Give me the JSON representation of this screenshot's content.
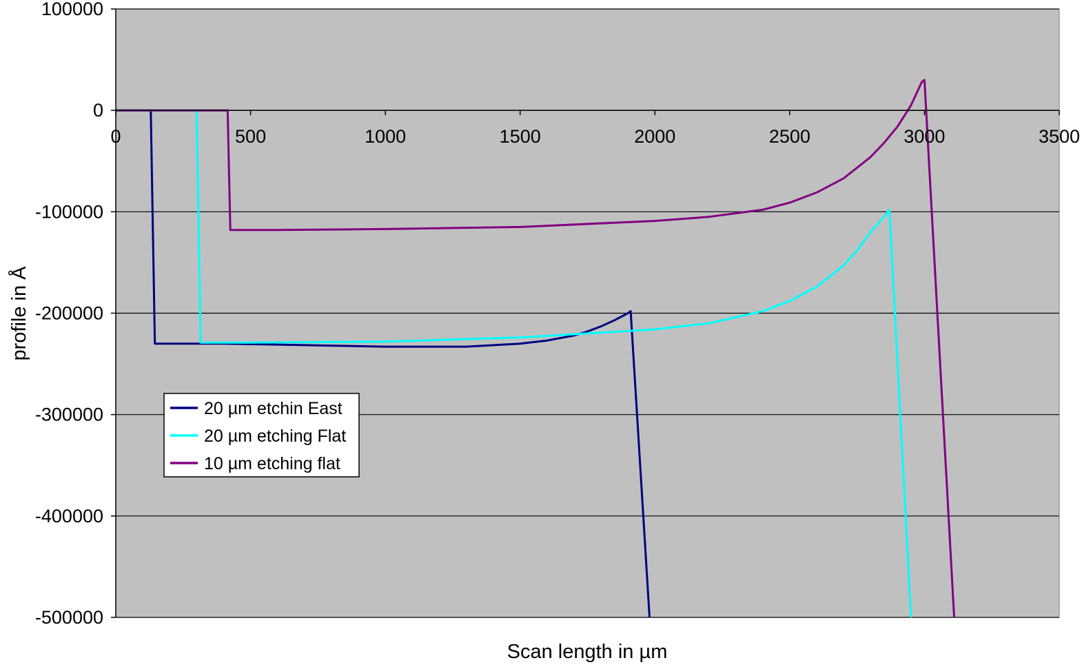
{
  "chart_data": {
    "type": "line",
    "title": "",
    "xlabel": "Scan length in µm",
    "ylabel": "profile in Å",
    "xlim": [
      0,
      3500
    ],
    "ylim": [
      -500000,
      100000
    ],
    "x_ticks": [
      0,
      500,
      1000,
      1500,
      2000,
      2500,
      3000,
      3500
    ],
    "y_ticks": [
      100000,
      0,
      -100000,
      -200000,
      -300000,
      -400000,
      -500000
    ],
    "x_tick_labels": [
      "0",
      "500",
      "1000",
      "1500",
      "2000",
      "2500",
      "3000",
      "3500"
    ],
    "y_tick_labels": [
      "100000",
      "0",
      "-100000",
      "-200000",
      "-300000",
      "-400000",
      "-500000"
    ],
    "grid": "horizontal",
    "legend_position": "left",
    "plot_background": "#C0C0C0",
    "series": [
      {
        "name": "20 µm etchin East",
        "color": "#000080",
        "x": [
          0,
          100,
          130,
          145,
          200,
          400,
          600,
          800,
          1000,
          1200,
          1300,
          1500,
          1600,
          1700,
          1750,
          1800,
          1850,
          1900,
          1910,
          1980
        ],
        "y": [
          0,
          0,
          0,
          -230000,
          -230000,
          -230000,
          -231000,
          -232000,
          -233000,
          -233000,
          -233000,
          -230000,
          -227000,
          -222000,
          -218000,
          -213000,
          -207000,
          -200000,
          -198000,
          -500000
        ]
      },
      {
        "name": "20 µm etching Flat",
        "color": "#00FFFF",
        "x": [
          0,
          250,
          300,
          315,
          500,
          1000,
          1500,
          2000,
          2200,
          2400,
          2500,
          2600,
          2700,
          2750,
          2800,
          2850,
          2870,
          2950
        ],
        "y": [
          0,
          0,
          0,
          -229000,
          -229000,
          -228000,
          -224000,
          -216000,
          -210000,
          -198000,
          -188000,
          -174000,
          -153000,
          -138000,
          -120000,
          -105000,
          -98000,
          -500000
        ]
      },
      {
        "name": "10 µm etching flat",
        "color": "#800080",
        "x": [
          0,
          350,
          415,
          425,
          600,
          1000,
          1500,
          2000,
          2200,
          2400,
          2500,
          2600,
          2700,
          2800,
          2850,
          2900,
          2950,
          2990,
          3000,
          3110
        ],
        "y": [
          0,
          0,
          0,
          -118000,
          -118000,
          -117000,
          -115000,
          -109000,
          -105000,
          -98000,
          -91000,
          -81000,
          -67000,
          -46000,
          -32000,
          -16000,
          5000,
          28000,
          30000,
          -500000
        ]
      }
    ]
  }
}
